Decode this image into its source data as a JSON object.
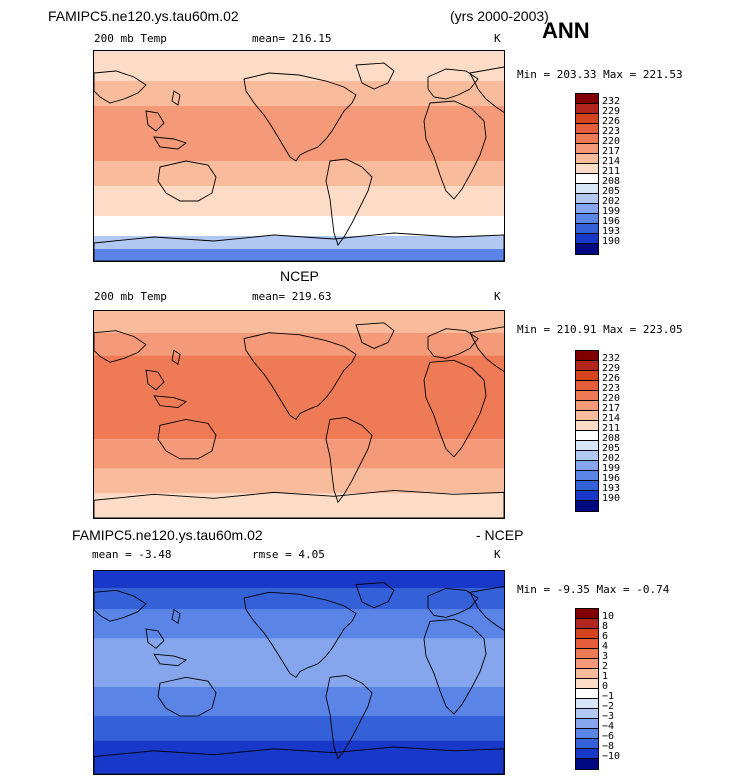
{
  "header": {
    "case_title": "FAMIPC5.ne120.ys.tau60m.02",
    "years": "(yrs 2000-2003)",
    "season": "ANN"
  },
  "panels": [
    {
      "id": "model",
      "title": "",
      "field": "200 mb Temp",
      "mean_text": "mean= 216.15",
      "units": "K",
      "minmax": "Min = 203.33 Max = 221.53"
    },
    {
      "id": "obs",
      "title": "NCEP",
      "field": "200 mb Temp",
      "mean_text": "mean= 219.63",
      "units": "K",
      "minmax": "Min = 210.91 Max = 223.05"
    },
    {
      "id": "diff",
      "title_left": "FAMIPC5.ne120.ys.tau60m.02",
      "title_right": "- NCEP",
      "mean_text": "mean =  -3.48",
      "rmse_text": "rmse =   4.05",
      "units": "K",
      "minmax": "Min =  -9.35 Max =  -0.74"
    }
  ],
  "colorbars": {
    "temp_levels": [
      "232",
      "229",
      "226",
      "223",
      "220",
      "217",
      "214",
      "211",
      "208",
      "205",
      "202",
      "199",
      "196",
      "193",
      "190"
    ],
    "diff_levels": [
      "10",
      "8",
      "6",
      "4",
      "3",
      "2",
      "1",
      "0",
      "−1",
      "−2",
      "−3",
      "−4",
      "−6",
      "−8",
      "−10"
    ],
    "colors": [
      "#800000",
      "#b3261e",
      "#d6431f",
      "#e55d3a",
      "#ef7a56",
      "#f49a78",
      "#f8bb9c",
      "#fcdcc6",
      "#ffffff",
      "#d8e6fa",
      "#b0c8f2",
      "#85a6ec",
      "#5a84e6",
      "#3460d8",
      "#1738c8",
      "#000a80"
    ]
  }
}
